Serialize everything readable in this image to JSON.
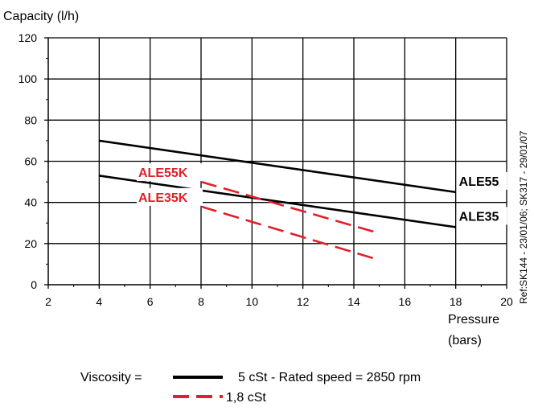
{
  "chart_data": {
    "type": "line",
    "ylabel": "Capacity   (l/h)",
    "xlabel_line1": "Pressure",
    "xlabel_line2": "(bars)",
    "xlim": [
      2,
      20
    ],
    "ylim": [
      0,
      120
    ],
    "x_ticks": [
      2,
      4,
      6,
      8,
      10,
      12,
      14,
      16,
      18,
      20
    ],
    "y_ticks": [
      0,
      20,
      40,
      60,
      80,
      100,
      120
    ],
    "grid": true,
    "series": [
      {
        "name": "ALE55",
        "style": "solid",
        "color": "#000000",
        "x": [
          4,
          18
        ],
        "y": [
          70,
          45
        ]
      },
      {
        "name": "ALE35",
        "style": "solid",
        "color": "#000000",
        "x": [
          4,
          18
        ],
        "y": [
          53,
          28
        ]
      },
      {
        "name": "ALE55K",
        "style": "dashed",
        "color": "#e0202a",
        "x": [
          8,
          15
        ],
        "y": [
          50,
          25
        ]
      },
      {
        "name": "ALE35K",
        "style": "dashed",
        "color": "#e0202a",
        "x": [
          8,
          15
        ],
        "y": [
          38,
          12
        ]
      }
    ],
    "legend": {
      "prefix": "Viscosity  =",
      "items": [
        {
          "style": "solid",
          "color": "#000000",
          "label": "5 cSt   - Rated speed = 2850 rpm"
        },
        {
          "style": "dashed",
          "color": "#e0202a",
          "label": "1,8 cSt"
        }
      ]
    },
    "reference": "Ref:SK144 - 23/01/06; SK317 - 29/01/07"
  }
}
